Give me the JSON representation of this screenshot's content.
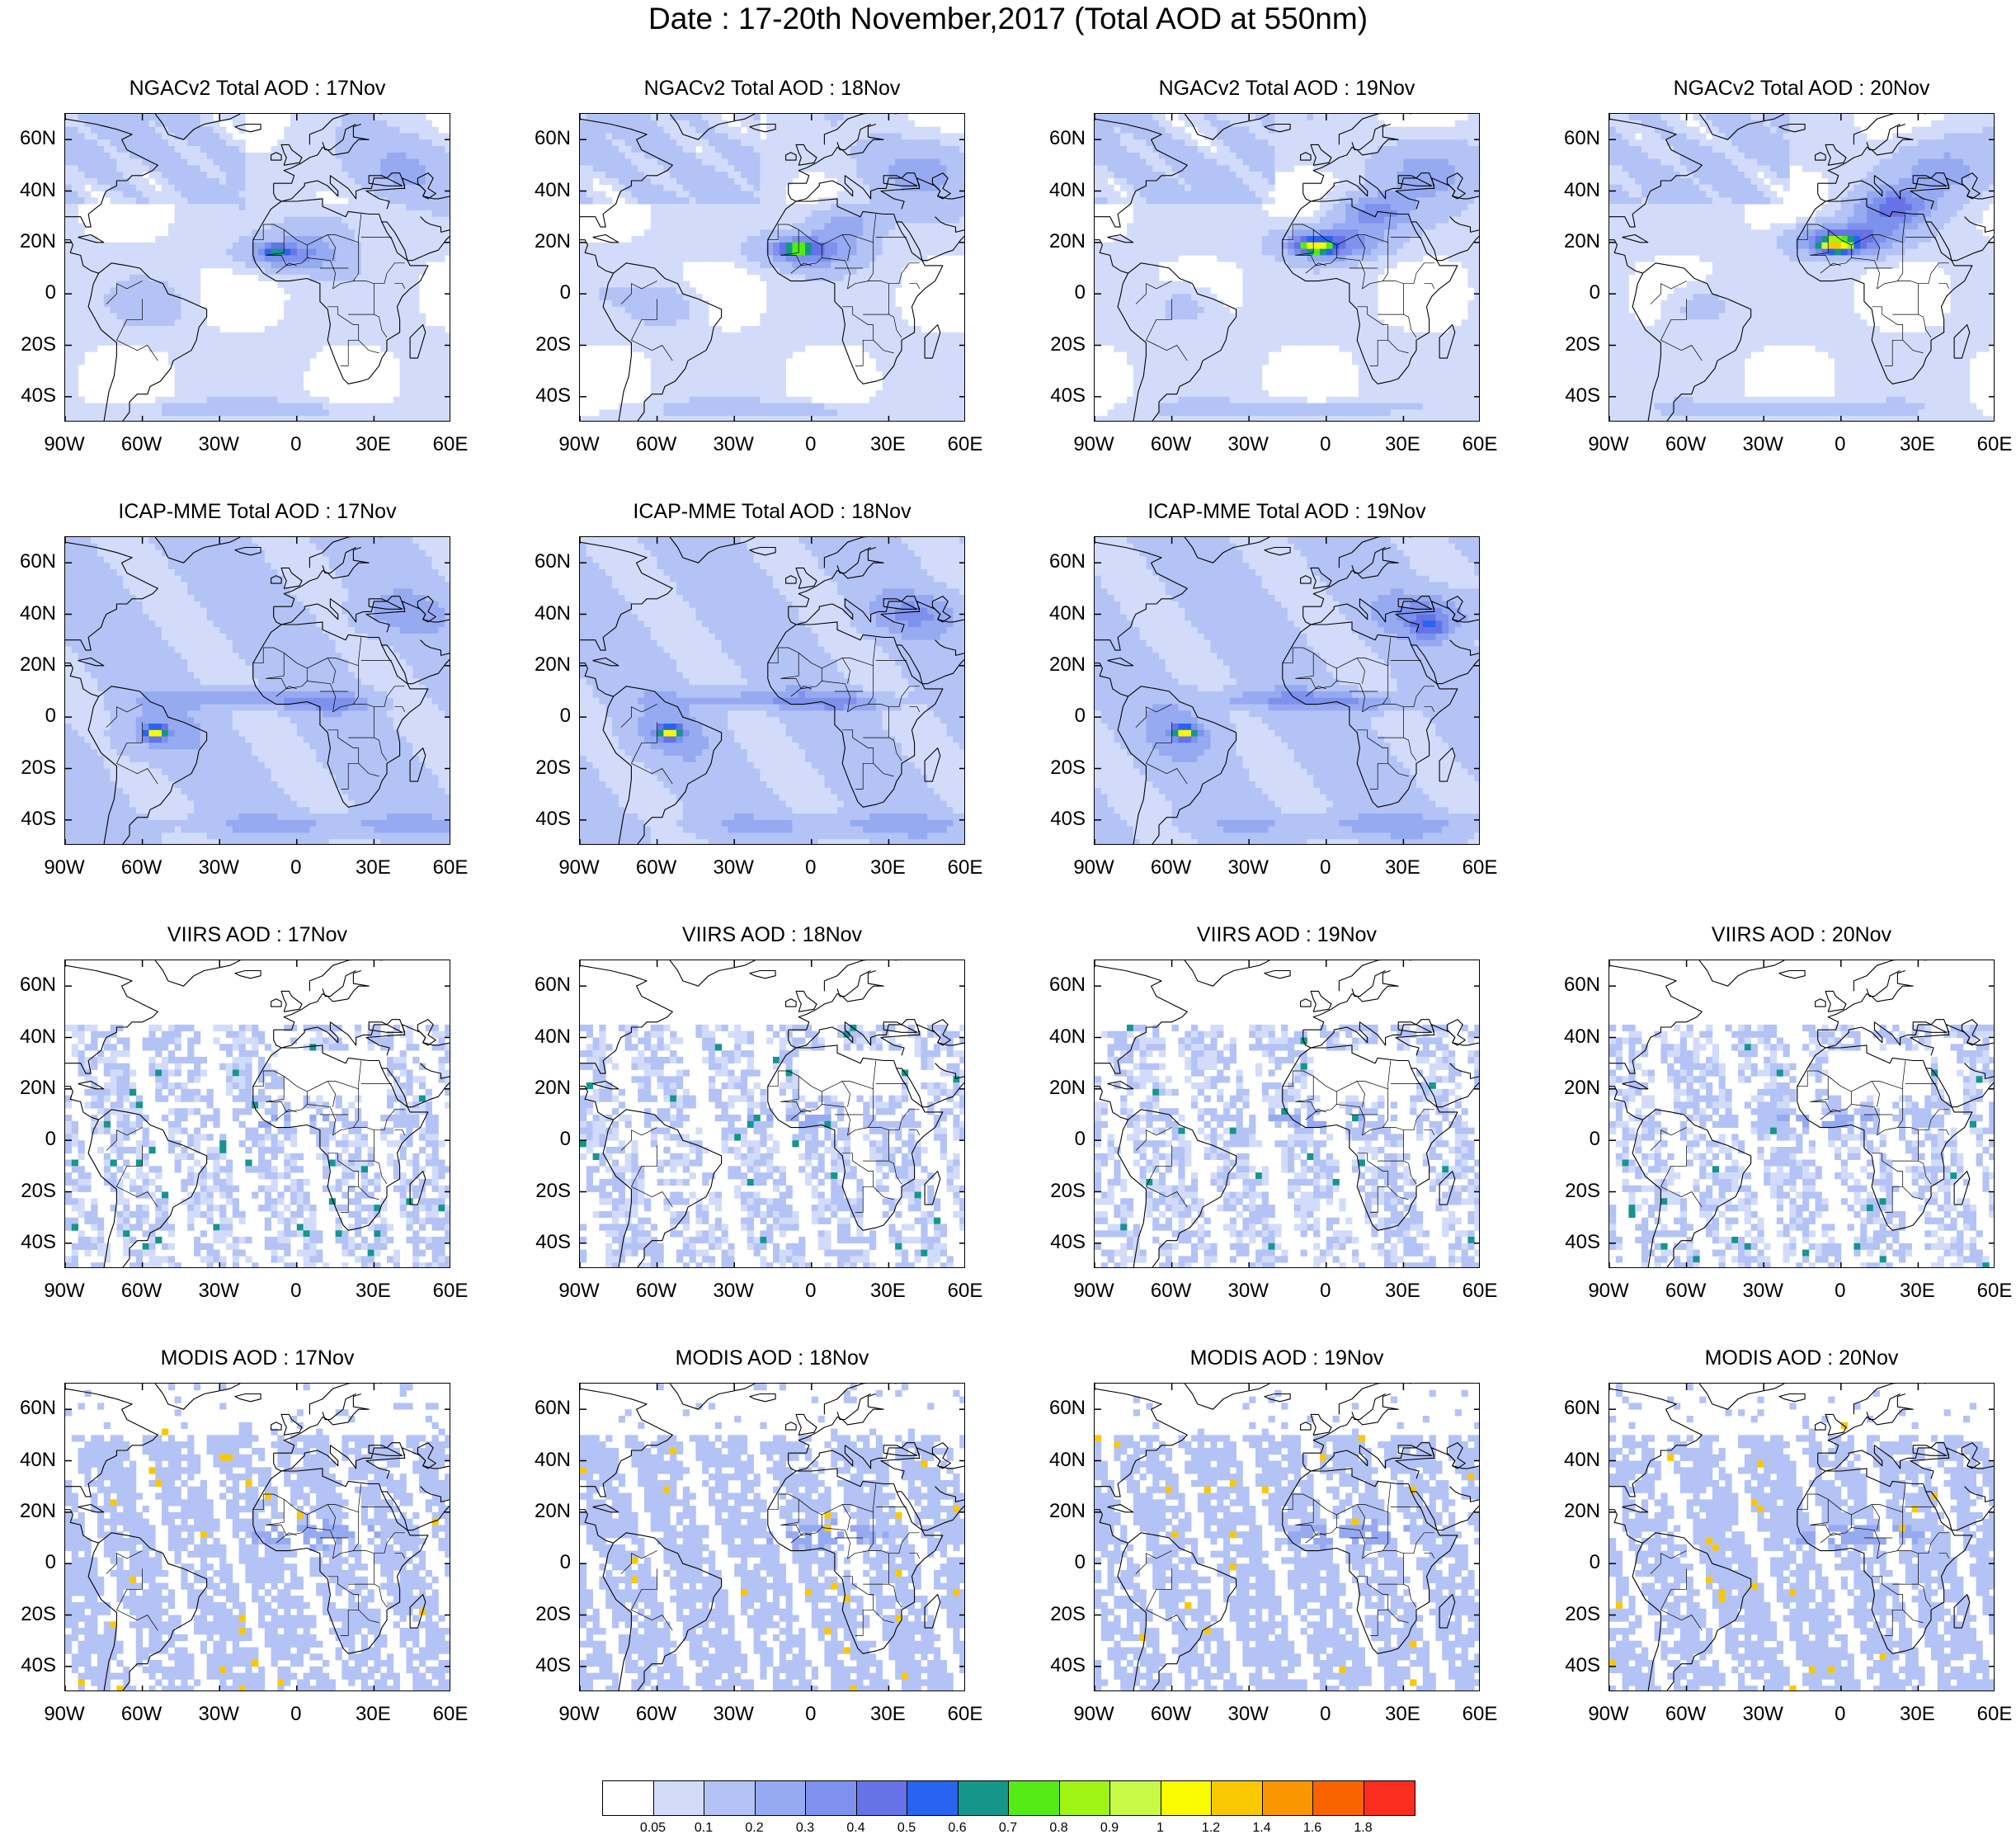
{
  "figure": {
    "title": "Date : 17-20th November,2017 (Total AOD at 550nm)"
  },
  "panel_rows": [
    {
      "row": "NGACv2",
      "panels": [
        {
          "title": "NGACv2 Total AOD : 17Nov",
          "field": "ngac",
          "day": 0
        },
        {
          "title": "NGACv2 Total AOD : 18Nov",
          "field": "ngac",
          "day": 1
        },
        {
          "title": "NGACv2 Total AOD : 19Nov",
          "field": "ngac",
          "day": 2
        },
        {
          "title": "NGACv2 Total AOD : 20Nov",
          "field": "ngac",
          "day": 3
        }
      ]
    },
    {
      "row": "ICAP-MME",
      "panels": [
        {
          "title": "ICAP-MME Total AOD : 17Nov",
          "field": "icap",
          "day": 0
        },
        {
          "title": "ICAP-MME Total AOD : 18Nov",
          "field": "icap",
          "day": 1
        },
        {
          "title": "ICAP-MME Total AOD : 19Nov",
          "field": "icap",
          "day": 2
        },
        null
      ]
    },
    {
      "row": "VIIRS",
      "panels": [
        {
          "title": "VIIRS AOD : 17Nov",
          "field": "viirs",
          "day": 0
        },
        {
          "title": "VIIRS AOD : 18Nov",
          "field": "viirs",
          "day": 1
        },
        {
          "title": "VIIRS AOD : 19Nov",
          "field": "viirs",
          "day": 2
        },
        {
          "title": "VIIRS AOD : 20Nov",
          "field": "viirs",
          "day": 3
        }
      ]
    },
    {
      "row": "MODIS",
      "panels": [
        {
          "title": "MODIS AOD : 17Nov",
          "field": "modis",
          "day": 0
        },
        {
          "title": "MODIS AOD : 18Nov",
          "field": "modis",
          "day": 1
        },
        {
          "title": "MODIS AOD : 19Nov",
          "field": "modis",
          "day": 2
        },
        {
          "title": "MODIS AOD : 20Nov",
          "field": "modis",
          "day": 3
        }
      ]
    }
  ],
  "axes": {
    "lon_range": [
      -90,
      60
    ],
    "lat_range": [
      -50,
      70
    ],
    "lon_ticks": [
      {
        "value": -90,
        "label": "90W"
      },
      {
        "value": -60,
        "label": "60W"
      },
      {
        "value": -30,
        "label": "30W"
      },
      {
        "value": 0,
        "label": "0"
      },
      {
        "value": 30,
        "label": "30E"
      },
      {
        "value": 60,
        "label": "60E"
      }
    ],
    "lat_ticks": [
      {
        "value": 60,
        "label": "60N"
      },
      {
        "value": 40,
        "label": "40N"
      },
      {
        "value": 20,
        "label": "20N"
      },
      {
        "value": 0,
        "label": "0"
      },
      {
        "value": -20,
        "label": "20S"
      },
      {
        "value": -40,
        "label": "40S"
      }
    ]
  },
  "colorbar": {
    "labels": [
      "0.05",
      "0.1",
      "0.2",
      "0.3",
      "0.4",
      "0.5",
      "0.6",
      "0.7",
      "0.8",
      "0.9",
      "1",
      "1.2",
      "1.4",
      "1.6",
      "1.8"
    ],
    "colors": [
      "#ffffff",
      "#d2dcfa",
      "#b4c3f5",
      "#96aaf2",
      "#7d91ed",
      "#6673e6",
      "#2864f0",
      "#14968c",
      "#55eb14",
      "#a0f514",
      "#c8fa46",
      "#fafa00",
      "#fac800",
      "#fa9600",
      "#fa6400",
      "#fa2d1e"
    ]
  },
  "map_style": {
    "ocean": "#ffffff",
    "coastline": "#000000",
    "title_color": "#000000"
  }
}
